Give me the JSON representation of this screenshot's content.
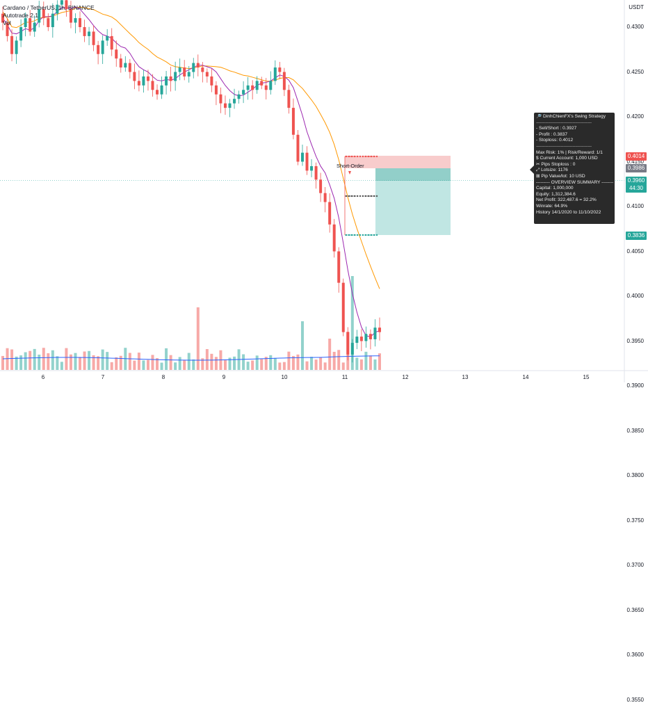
{
  "header": {
    "symbol_line": "Cardano / TetherUS, 1h, BINANCE",
    "indicator_line": "Autotrade 2.1",
    "vol_line": "Vol"
  },
  "axis": {
    "currency": "USDT",
    "ticks": [
      "0.4300",
      "0.4250",
      "0.4200",
      "0.4150",
      "0.4100",
      "0.4050",
      "0.4000",
      "0.3950",
      "0.3900",
      "0.3850",
      "0.3800",
      "0.3750",
      "0.3700",
      "0.3650",
      "0.3600",
      "0.3550"
    ]
  },
  "price_tags": {
    "stop": "0.4014",
    "entry": "0.3986",
    "current": "0.3960",
    "countdown": "44:30",
    "target": "0.3836"
  },
  "colors": {
    "up": "#26a69a",
    "down": "#ef5350",
    "stop_zone": "#f7c6c6",
    "target_zone": "#b9e3e0",
    "ma_fast": "#9c27b0",
    "ma_slow": "#ff9800",
    "volume_ma": "#2962ff"
  },
  "x_labels": [
    "6",
    "7",
    "8",
    "9",
    "10",
    "11",
    "12",
    "13",
    "14",
    "15"
  ],
  "annotation": {
    "short_order": "Short-Order"
  },
  "tooltip": {
    "title": "🔎 DinhChienFX's Swing Strategy",
    "sep1": "-----------------------------------------------",
    "sell": "- Sell/Short   : 0.3927",
    "profit": "- Profit   : 0.3837",
    "stoploss": "- Stoploss: 0.4012",
    "sep2": "-----------------------------------------------",
    "risk": "Max Risk: 1% | Risk/Reward: 1/1",
    "account": "$ Current Account: 1,000 USD",
    "pips": "✂ Pips Stoploss : 0",
    "lotsize": "⤢ Lotsize: 1176",
    "pipvalue": "⊠ Pip Value/lot: 10 USD",
    "overview": "--------- OVERVIEW SUMMARY ---------",
    "capital": "Capital: 1,000,000",
    "equity": "Equity: 1,312,384.6",
    "netprofit": "Net Profit: 322,487.6 = 32.2%",
    "winrate": "Winrate: 64.9%",
    "history": "History 14/1/2020 to 11/10/2022"
  },
  "chart_data": {
    "type": "candlestick",
    "x": [
      "6",
      "7",
      "8",
      "9",
      "10",
      "11",
      "12",
      "13",
      "14",
      "15"
    ],
    "price_ylim": [
      0.3535,
      0.4335
    ],
    "trade": {
      "entry": 0.3986,
      "stop": 0.4014,
      "target": 0.3836,
      "current": 0.396
    },
    "close_series": [
      0.4305,
      0.429,
      0.427,
      0.4285,
      0.43,
      0.431,
      0.4295,
      0.4305,
      0.432,
      0.431,
      0.43,
      0.4315,
      0.4325,
      0.433,
      0.432,
      0.4305,
      0.431,
      0.43,
      0.429,
      0.4295,
      0.428,
      0.427,
      0.4285,
      0.429,
      0.4275,
      0.4265,
      0.4255,
      0.426,
      0.425,
      0.424,
      0.4235,
      0.4245,
      0.424,
      0.423,
      0.4225,
      0.4235,
      0.4245,
      0.424,
      0.425,
      0.4255,
      0.4245,
      0.425,
      0.426,
      0.4255,
      0.425,
      0.4245,
      0.4235,
      0.4225,
      0.4215,
      0.421,
      0.4215,
      0.422,
      0.4225,
      0.423,
      0.4235,
      0.423,
      0.424,
      0.4235,
      0.423,
      0.424,
      0.4255,
      0.425,
      0.423,
      0.421,
      0.418,
      0.415,
      0.416,
      0.414,
      0.4145,
      0.413,
      0.4115,
      0.4105,
      0.408,
      0.405,
      0.4015,
      0.396,
      0.3935,
      0.3948,
      0.3955,
      0.395,
      0.3958,
      0.3952,
      0.3965,
      0.396
    ]
  }
}
